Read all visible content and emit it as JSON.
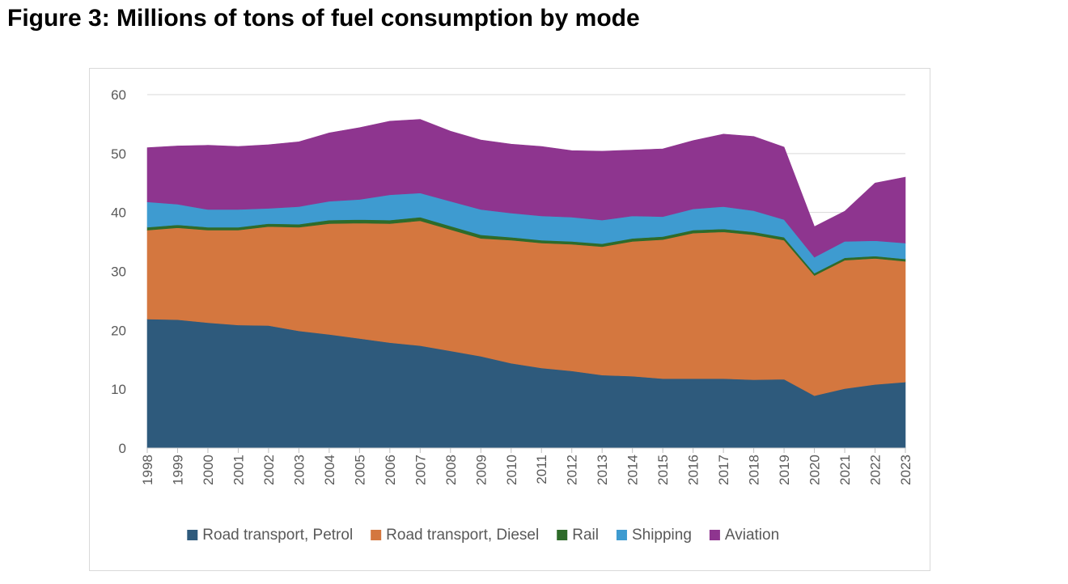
{
  "figure": {
    "title": "Figure 3: Millions of tons of fuel consumption by mode"
  },
  "chart_data": {
    "type": "area",
    "stacked": true,
    "title": "Figure 3: Millions of tons of fuel consumption by mode",
    "xlabel": "",
    "ylabel": "",
    "ylim": [
      0,
      60
    ],
    "yticks": [
      "0",
      "10",
      "20",
      "30",
      "40",
      "50",
      "60"
    ],
    "grid": true,
    "legend_position": "bottom",
    "categories": [
      "1998",
      "1999",
      "2000",
      "2001",
      "2002",
      "2003",
      "2004",
      "2005",
      "2006",
      "2007",
      "2008",
      "2009",
      "2010",
      "2011",
      "2012",
      "2013",
      "2014",
      "2015",
      "2016",
      "2017",
      "2018",
      "2019",
      "2020",
      "2021",
      "2022",
      "2023"
    ],
    "series": [
      {
        "name": "Road transport, Petrol",
        "color": "#2e5a7c",
        "values": [
          21.9,
          21.8,
          21.3,
          20.9,
          20.8,
          19.9,
          19.3,
          18.6,
          17.9,
          17.4,
          16.5,
          15.6,
          14.4,
          13.6,
          13.1,
          12.4,
          12.2,
          11.8,
          11.8,
          11.8,
          11.6,
          11.7,
          8.9,
          10.1,
          10.8,
          11.2
        ]
      },
      {
        "name": "Road transport, Diesel",
        "color": "#d4773f",
        "values": [
          15.1,
          15.6,
          15.7,
          16.1,
          16.8,
          17.6,
          18.8,
          19.6,
          20.2,
          21.2,
          20.6,
          20.0,
          20.9,
          21.2,
          21.5,
          21.8,
          22.9,
          23.6,
          24.7,
          24.9,
          24.6,
          23.6,
          20.4,
          21.8,
          21.4,
          20.5
        ]
      },
      {
        "name": "Rail",
        "color": "#2e6b2a",
        "values": [
          0.5,
          0.5,
          0.5,
          0.5,
          0.5,
          0.5,
          0.6,
          0.6,
          0.6,
          0.6,
          0.6,
          0.6,
          0.5,
          0.5,
          0.5,
          0.5,
          0.5,
          0.5,
          0.5,
          0.5,
          0.5,
          0.5,
          0.4,
          0.4,
          0.4,
          0.4
        ]
      },
      {
        "name": "Shipping",
        "color": "#3e9bd0",
        "values": [
          4.3,
          3.5,
          3.0,
          3.0,
          2.6,
          3.0,
          3.2,
          3.4,
          4.3,
          4.1,
          4.2,
          4.3,
          4.1,
          4.1,
          4.1,
          4.0,
          3.8,
          3.4,
          3.6,
          3.8,
          3.6,
          3.0,
          2.7,
          2.8,
          2.6,
          2.7
        ]
      },
      {
        "name": "Aviation",
        "color": "#8e358f",
        "values": [
          9.2,
          9.9,
          10.9,
          10.7,
          10.8,
          11.0,
          11.6,
          12.2,
          12.5,
          12.5,
          11.9,
          11.8,
          11.7,
          11.8,
          11.3,
          11.7,
          11.2,
          11.5,
          11.6,
          12.3,
          12.6,
          12.3,
          5.2,
          5.1,
          9.8,
          11.2
        ]
      }
    ]
  }
}
